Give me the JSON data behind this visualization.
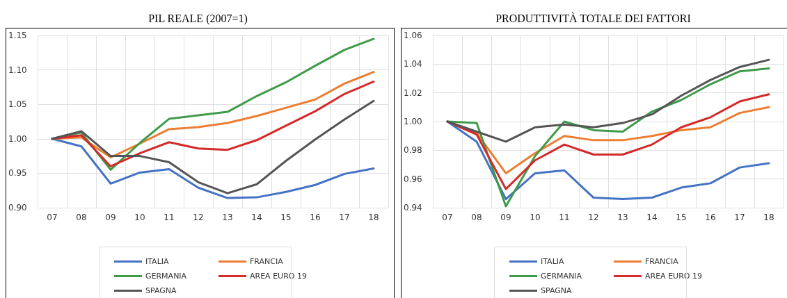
{
  "chart_data": [
    {
      "type": "line",
      "title": "PIL REALE (2007=1)",
      "categories": [
        "07",
        "08",
        "09",
        "10",
        "11",
        "12",
        "13",
        "14",
        "15",
        "16",
        "17",
        "18"
      ],
      "series": [
        {
          "name": "ITALIA",
          "color": "#4472c4",
          "values": [
            1.0,
            0.989,
            0.935,
            0.951,
            0.956,
            0.929,
            0.914,
            0.915,
            0.923,
            0.933,
            0.949,
            0.957
          ]
        },
        {
          "name": "FRANCIA",
          "color": "#ed7d31",
          "values": [
            1.0,
            1.002,
            0.973,
            0.993,
            1.014,
            1.017,
            1.023,
            1.033,
            1.045,
            1.057,
            1.08,
            1.097
          ]
        },
        {
          "name": "GERMANIA",
          "color": "#3f9b4a",
          "values": [
            1.0,
            1.009,
            0.955,
            0.994,
            1.029,
            1.034,
            1.039,
            1.062,
            1.082,
            1.106,
            1.129,
            1.145
          ]
        },
        {
          "name": "AREA EURO 19",
          "color": "#d42a2a",
          "values": [
            1.0,
            1.005,
            0.96,
            0.979,
            0.995,
            0.986,
            0.984,
            0.998,
            1.019,
            1.04,
            1.065,
            1.083
          ]
        },
        {
          "name": "SPAGNA",
          "color": "#555555",
          "values": [
            1.0,
            1.011,
            0.975,
            0.975,
            0.966,
            0.937,
            0.921,
            0.934,
            0.968,
            0.999,
            1.028,
            1.055
          ]
        }
      ],
      "ylim": [
        0.9,
        1.15
      ],
      "yticks": [
        {
          "value": 0.9,
          "label": "0.90"
        },
        {
          "value": 0.95,
          "label": "0.95"
        },
        {
          "value": 1.0,
          "label": "1.00"
        },
        {
          "value": 1.05,
          "label": "1.05"
        },
        {
          "value": 1.1,
          "label": "1.10"
        },
        {
          "value": 1.15,
          "label": "1.15"
        }
      ],
      "grid": true,
      "legend": "bottom",
      "marker": "none",
      "line_style": "solid"
    },
    {
      "type": "line",
      "title": "PRODUTTIVITÀ TOTALE DEI FATTORI",
      "categories": [
        "07",
        "08",
        "09",
        "10",
        "11",
        "12",
        "13",
        "14",
        "15",
        "16",
        "17",
        "18"
      ],
      "series": [
        {
          "name": "ITALIA",
          "color": "#4472c4",
          "values": [
            1.0,
            0.986,
            0.946,
            0.964,
            0.966,
            0.947,
            0.946,
            0.947,
            0.954,
            0.957,
            0.968,
            0.971
          ]
        },
        {
          "name": "FRANCIA",
          "color": "#ed7d31",
          "values": [
            1.0,
            0.992,
            0.964,
            0.978,
            0.99,
            0.987,
            0.987,
            0.99,
            0.994,
            0.996,
            1.006,
            1.01
          ]
        },
        {
          "name": "GERMANIA",
          "color": "#3f9b4a",
          "values": [
            1.0,
            0.999,
            0.941,
            0.976,
            1.0,
            0.994,
            0.993,
            1.007,
            1.015,
            1.026,
            1.035,
            1.037
          ]
        },
        {
          "name": "AREA EURO 19",
          "color": "#d42a2a",
          "values": [
            1.0,
            0.991,
            0.953,
            0.973,
            0.984,
            0.977,
            0.977,
            0.984,
            0.996,
            1.003,
            1.014,
            1.019
          ]
        },
        {
          "name": "SPAGNA",
          "color": "#555555",
          "values": [
            1.0,
            0.993,
            0.986,
            0.996,
            0.998,
            0.996,
            0.999,
            1.005,
            1.018,
            1.029,
            1.038,
            1.043
          ]
        }
      ],
      "ylim": [
        0.94,
        1.06
      ],
      "yticks": [
        {
          "value": 0.94,
          "label": "0.94"
        },
        {
          "value": 0.96,
          "label": "0.96"
        },
        {
          "value": 0.98,
          "label": "0.98"
        },
        {
          "value": 1.0,
          "label": "1.00"
        },
        {
          "value": 1.02,
          "label": "1.02"
        },
        {
          "value": 1.04,
          "label": "1.04"
        },
        {
          "value": 1.06,
          "label": "1.06"
        }
      ],
      "grid": true,
      "legend": "bottom",
      "marker": "none",
      "line_style": "solid"
    }
  ]
}
